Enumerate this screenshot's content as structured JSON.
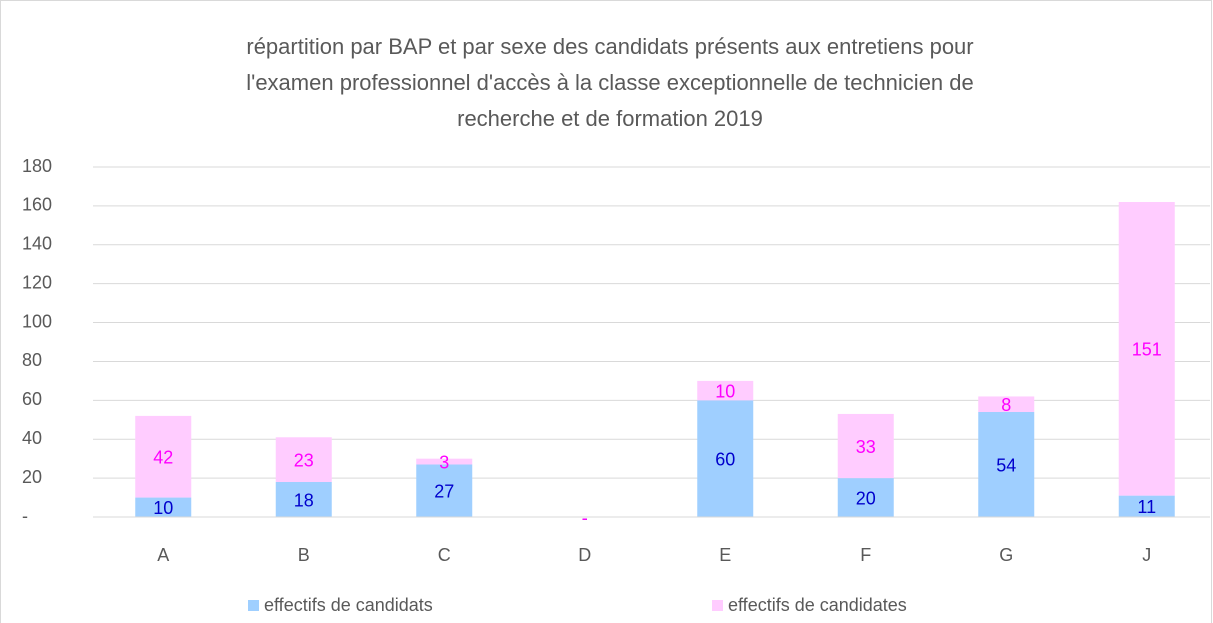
{
  "chart_data": {
    "type": "bar",
    "stacked": true,
    "title": [
      "répartition par BAP et par sexe des candidats présents aux entretiens pour",
      "l'examen professionnel d'accès à la classe exceptionnelle de technicien  de",
      "recherche et de formation 2019"
    ],
    "categories": [
      "A",
      "B",
      "C",
      "D",
      "E",
      "F",
      "G",
      "J"
    ],
    "series": [
      {
        "name": "effectifs de candidats",
        "color": "#9fcfff",
        "label_color": "#0000cc",
        "values": [
          10,
          18,
          27,
          0,
          60,
          20,
          54,
          11
        ],
        "value_labels": [
          "10",
          "18",
          "27",
          "-",
          "60",
          "20",
          "54",
          "11"
        ]
      },
      {
        "name": "effectifs de candidates",
        "color": "#ffccff",
        "label_color": "#ff00ff",
        "values": [
          42,
          23,
          3,
          0,
          10,
          33,
          8,
          151
        ],
        "value_labels": [
          "42",
          "23",
          "3",
          "-",
          "10",
          "33",
          "8",
          "151"
        ]
      }
    ],
    "ylim": [
      0,
      180
    ],
    "yticks": [
      {
        "value": 0,
        "label": "-"
      },
      20,
      40,
      60,
      80,
      100,
      120,
      140,
      160,
      180
    ],
    "grid": true,
    "legend": "bottom"
  }
}
